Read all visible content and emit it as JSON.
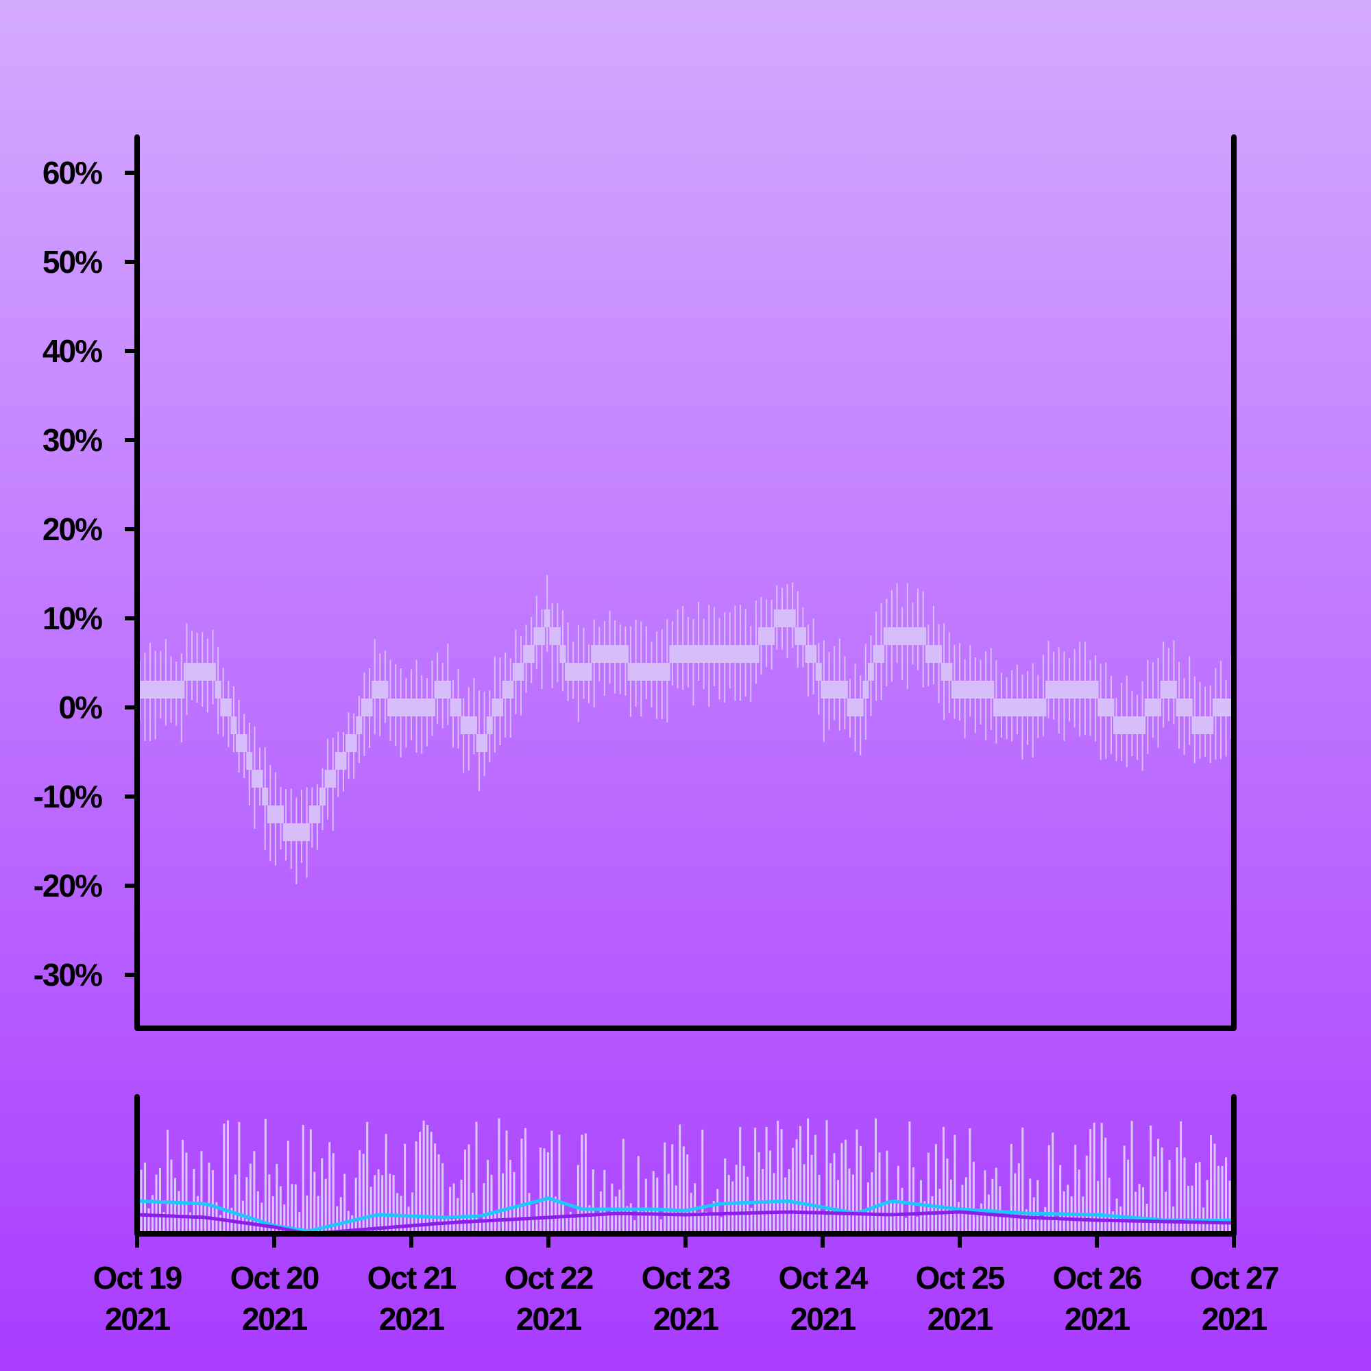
{
  "colors": {
    "background_top": "#d4aaff",
    "background_bottom": "#a93cff",
    "candles": "#d7bdfa",
    "volume_bars": "#dcc8f8",
    "volume_ma_fast": "#1ec8ff",
    "volume_ma_slow": "#8a1fe8",
    "axes": "#000000"
  },
  "chart_data": {
    "type": "candlestick",
    "title": "",
    "xlabel": "",
    "ylabel": "",
    "y_axis": {
      "range": [
        -36,
        64
      ],
      "ticks": [
        60,
        50,
        40,
        30,
        20,
        10,
        0,
        -10,
        -20,
        -30
      ],
      "tick_labels": [
        "60%",
        "50%",
        "40%",
        "30%",
        "20%",
        "10%",
        "0%",
        "-10%",
        "-20%",
        "-30%"
      ]
    },
    "x_axis": {
      "range": [
        "2021-10-19",
        "2021-10-27"
      ],
      "ticks": [
        {
          "line1": "Oct 19",
          "line2": "2021"
        },
        {
          "line1": "Oct 20",
          "line2": "2021"
        },
        {
          "line1": "Oct 21",
          "line2": "2021"
        },
        {
          "line1": "Oct 22",
          "line2": "2021"
        },
        {
          "line1": "Oct 23",
          "line2": "2021"
        },
        {
          "line1": "Oct 24",
          "line2": "2021"
        },
        {
          "line1": "Oct 25",
          "line2": "2021"
        },
        {
          "line1": "Oct 26",
          "line2": "2021"
        },
        {
          "line1": "Oct 27",
          "line2": "2021"
        }
      ]
    },
    "grid": false,
    "legend": "none",
    "price_path": [
      [
        "2021-10-19",
        3
      ],
      [
        "2021-10-19T06:00",
        2
      ],
      [
        "2021-10-19T12:00",
        5
      ],
      [
        "2021-10-19T18:00",
        -4
      ],
      [
        "2021-10-20T00:00",
        -12
      ],
      [
        "2021-10-20T04:00",
        -15
      ],
      [
        "2021-10-20T12:00",
        -6
      ],
      [
        "2021-10-20T18:00",
        2
      ],
      [
        "2021-10-21T00:00",
        -1
      ],
      [
        "2021-10-21T06:00",
        2
      ],
      [
        "2021-10-21T12:00",
        -4
      ],
      [
        "2021-10-21T18:00",
        3
      ],
      [
        "2021-10-22T00:00",
        10
      ],
      [
        "2021-10-22T04:00",
        4
      ],
      [
        "2021-10-22T12:00",
        6
      ],
      [
        "2021-10-22T18:00",
        3
      ],
      [
        "2021-10-23T00:00",
        7
      ],
      [
        "2021-10-23T12:00",
        6
      ],
      [
        "2021-10-23T18:00",
        11
      ],
      [
        "2021-10-24T00:00",
        3
      ],
      [
        "2021-10-24T06:00",
        0
      ],
      [
        "2021-10-24T12:00",
        9
      ],
      [
        "2021-10-24T18:00",
        7
      ],
      [
        "2021-10-25T00:00",
        2
      ],
      [
        "2021-10-25T06:00",
        1
      ],
      [
        "2021-10-25T12:00",
        -1
      ],
      [
        "2021-10-25T18:00",
        3
      ],
      [
        "2021-10-26T00:00",
        1
      ],
      [
        "2021-10-26T06:00",
        -3
      ],
      [
        "2021-10-26T12:00",
        2
      ],
      [
        "2021-10-26T18:00",
        -2
      ],
      [
        "2021-10-27T00:00",
        1
      ]
    ],
    "volume_ma_fast_path": [
      [
        "2021-10-19",
        0.24
      ],
      [
        "2021-10-19T12:00",
        0.22
      ],
      [
        "2021-10-20T00:00",
        0.06
      ],
      [
        "2021-10-20T06:00",
        0.02
      ],
      [
        "2021-10-20T18:00",
        0.14
      ],
      [
        "2021-10-21T06:00",
        0.12
      ],
      [
        "2021-10-21T12:00",
        0.13
      ],
      [
        "2021-10-22T00:00",
        0.26
      ],
      [
        "2021-10-22T06:00",
        0.18
      ],
      [
        "2021-10-22T18:00",
        0.18
      ],
      [
        "2021-10-23T00:00",
        0.17
      ],
      [
        "2021-10-23T06:00",
        0.22
      ],
      [
        "2021-10-23T18:00",
        0.24
      ],
      [
        "2021-10-24T06:00",
        0.15
      ],
      [
        "2021-10-24T12:00",
        0.24
      ],
      [
        "2021-10-25T00:00",
        0.18
      ],
      [
        "2021-10-25T12:00",
        0.15
      ],
      [
        "2021-10-26T00:00",
        0.14
      ],
      [
        "2021-10-26T12:00",
        0.1
      ],
      [
        "2021-10-27T00:00",
        0.1
      ]
    ],
    "volume_ma_slow_path": [
      [
        "2021-10-19",
        0.14
      ],
      [
        "2021-10-19T12:00",
        0.12
      ],
      [
        "2021-10-20T00:00",
        0.05
      ],
      [
        "2021-10-20T06:00",
        0.0
      ],
      [
        "2021-10-20T18:00",
        0.04
      ],
      [
        "2021-10-21T06:00",
        0.08
      ],
      [
        "2021-10-22T00:00",
        0.12
      ],
      [
        "2021-10-22T12:00",
        0.15
      ],
      [
        "2021-10-23T00:00",
        0.14
      ],
      [
        "2021-10-23T18:00",
        0.16
      ],
      [
        "2021-10-24T12:00",
        0.14
      ],
      [
        "2021-10-25T00:00",
        0.16
      ],
      [
        "2021-10-25T12:00",
        0.12
      ],
      [
        "2021-10-26T00:00",
        0.1
      ],
      [
        "2021-10-27T00:00",
        0.08
      ]
    ]
  }
}
